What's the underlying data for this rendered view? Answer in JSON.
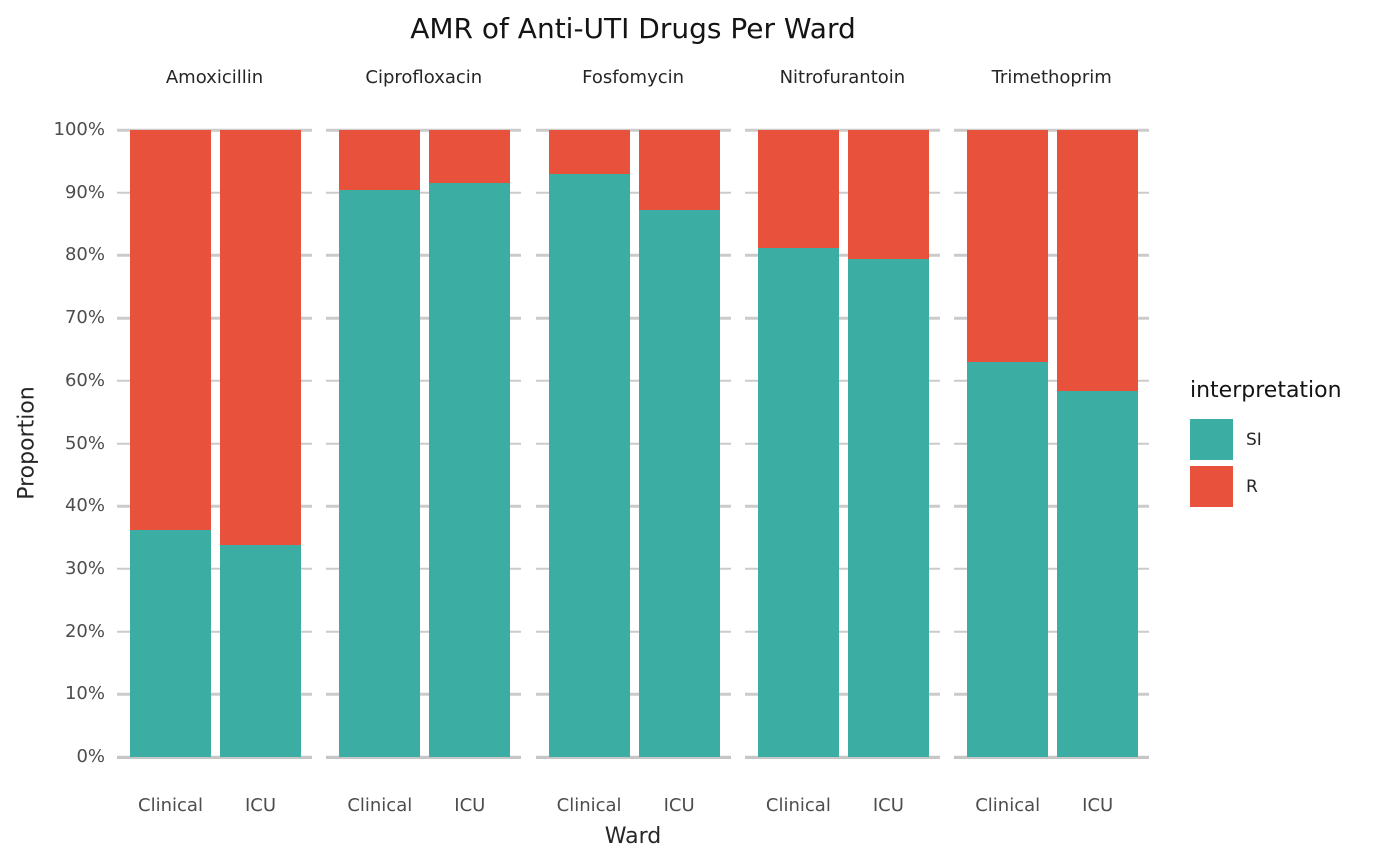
{
  "chart_data": {
    "type": "bar",
    "stacked": "fill",
    "title": "AMR of Anti-UTI Drugs Per Ward",
    "xlabel": "Ward",
    "ylabel": "Proportion",
    "categories": [
      "Clinical",
      "ICU"
    ],
    "facets": [
      {
        "label": "Amoxicillin",
        "series": [
          {
            "name": "SI",
            "values": [
              36.2,
              33.8
            ]
          },
          {
            "name": "R",
            "values": [
              63.8,
              66.2
            ]
          }
        ]
      },
      {
        "label": "Ciprofloxacin",
        "series": [
          {
            "name": "SI",
            "values": [
              90.5,
              91.5
            ]
          },
          {
            "name": "R",
            "values": [
              9.5,
              8.5
            ]
          }
        ]
      },
      {
        "label": "Fosfomycin",
        "series": [
          {
            "name": "SI",
            "values": [
              93.0,
              87.2
            ]
          },
          {
            "name": "R",
            "values": [
              7.0,
              12.8
            ]
          }
        ]
      },
      {
        "label": "Nitrofurantoin",
        "series": [
          {
            "name": "SI",
            "values": [
              81.2,
              79.5
            ]
          },
          {
            "name": "R",
            "values": [
              18.8,
              20.5
            ]
          }
        ]
      },
      {
        "label": "Trimethoprim",
        "series": [
          {
            "name": "SI",
            "values": [
              63.0,
              58.4
            ]
          },
          {
            "name": "R",
            "values": [
              37.0,
              41.6
            ]
          }
        ]
      }
    ],
    "y_ticks": [
      "0%",
      "10%",
      "20%",
      "30%",
      "40%",
      "50%",
      "60%",
      "70%",
      "80%",
      "90%",
      "100%"
    ],
    "ylim": [
      0,
      100
    ],
    "grid": true,
    "legend": {
      "title": "interpretation",
      "position": "right",
      "entries": [
        {
          "label": "SI",
          "color": "#3BADA3"
        },
        {
          "label": "R",
          "color": "#E8513B"
        }
      ]
    },
    "colors": {
      "si": "#3BADA3",
      "r": "#E8513B",
      "gridline": "#CBCBCB",
      "axis_line": "#C6C6C6",
      "tick_label": "#4D4D4D",
      "text": "#262626"
    }
  }
}
